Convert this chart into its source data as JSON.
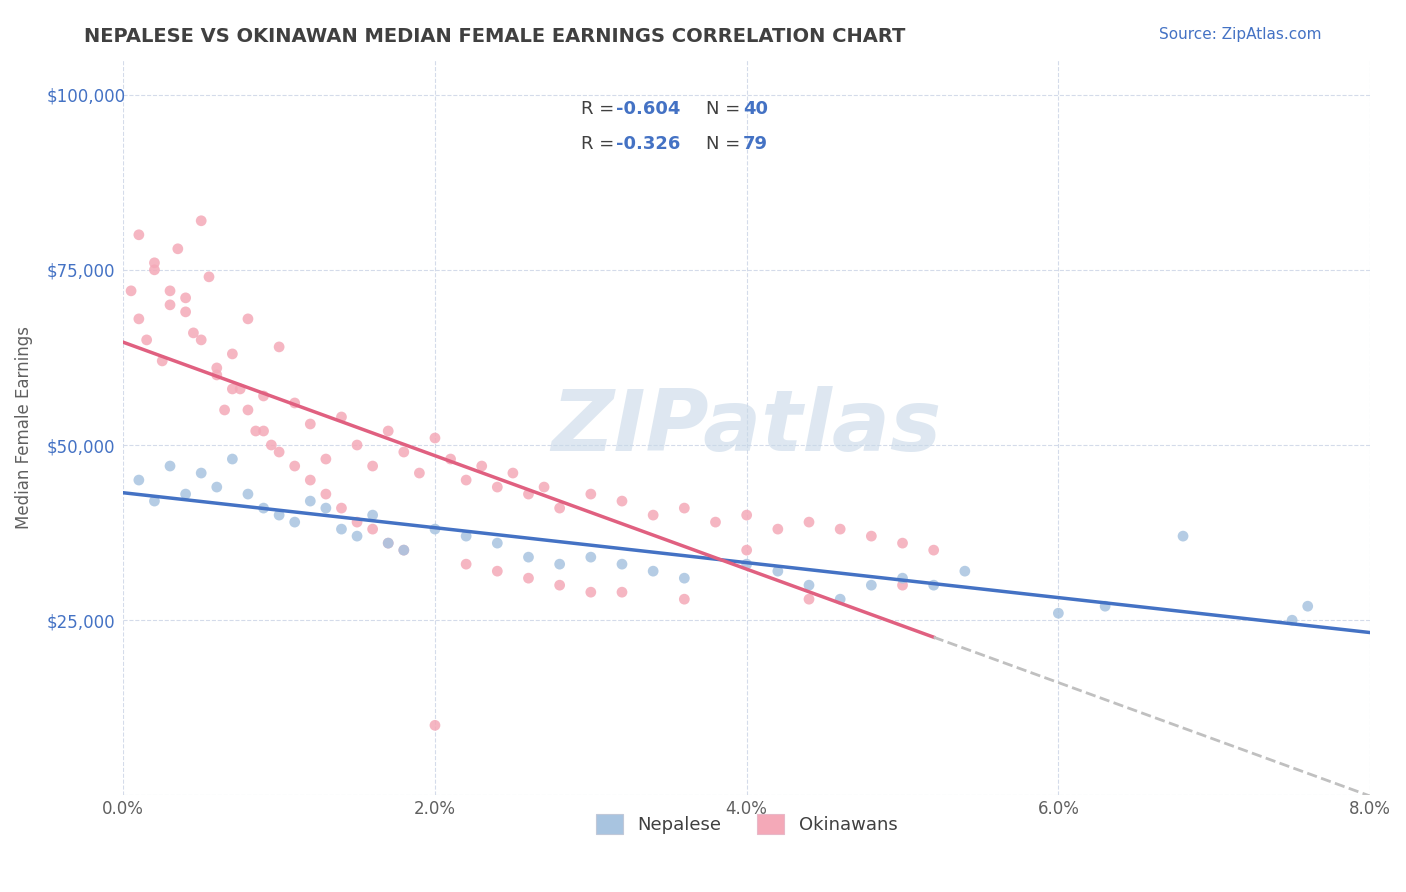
{
  "title": "NEPALESE VS OKINAWAN MEDIAN FEMALE EARNINGS CORRELATION CHART",
  "source_text": "Source: ZipAtlas.com",
  "xlabel": "",
  "ylabel": "Median Female Earnings",
  "xlim": [
    0.0,
    0.08
  ],
  "ylim": [
    0,
    105000
  ],
  "yticks": [
    0,
    25000,
    50000,
    75000,
    100000
  ],
  "ytick_labels": [
    "",
    "$25,000",
    "$50,000",
    "$75,000",
    "$100,000"
  ],
  "xtick_labels": [
    "0.0%",
    "2.0%",
    "4.0%",
    "6.0%",
    "8.0%"
  ],
  "xticks": [
    0.0,
    0.02,
    0.04,
    0.06,
    0.08
  ],
  "nepalese_R": -0.604,
  "nepalese_N": 40,
  "okinawan_R": -0.326,
  "okinawan_N": 79,
  "nepalese_color": "#a8c4e0",
  "okinawan_color": "#f4a9b8",
  "nepalese_line_color": "#4472c4",
  "okinawan_line_color": "#e06080",
  "trend_ext_color": "#c0c0c0",
  "watermark_text": "ZIPatlas",
  "watermark_color": "#c8d8e8",
  "background_color": "#ffffff",
  "grid_color": "#d0d8e8",
  "title_color": "#404040",
  "source_color": "#4472c4",
  "legend_R_color": "#4472c4",
  "legend_N_color": "#4472c4",
  "nepalese_x": [
    0.001,
    0.002,
    0.003,
    0.004,
    0.005,
    0.006,
    0.007,
    0.008,
    0.009,
    0.01,
    0.011,
    0.012,
    0.013,
    0.014,
    0.015,
    0.016,
    0.017,
    0.018,
    0.02,
    0.022,
    0.024,
    0.026,
    0.028,
    0.03,
    0.032,
    0.034,
    0.036,
    0.04,
    0.042,
    0.044,
    0.046,
    0.048,
    0.05,
    0.052,
    0.054,
    0.06,
    0.063,
    0.068,
    0.075,
    0.076
  ],
  "nepalese_y": [
    45000,
    42000,
    47000,
    43000,
    46000,
    44000,
    48000,
    43000,
    41000,
    40000,
    39000,
    42000,
    41000,
    38000,
    37000,
    40000,
    36000,
    35000,
    38000,
    37000,
    36000,
    34000,
    33000,
    34000,
    33000,
    32000,
    31000,
    33000,
    32000,
    30000,
    28000,
    30000,
    31000,
    30000,
    32000,
    26000,
    27000,
    37000,
    25000,
    27000
  ],
  "okinawan_x": [
    0.0005,
    0.001,
    0.0015,
    0.002,
    0.0025,
    0.003,
    0.0035,
    0.004,
    0.0045,
    0.005,
    0.0055,
    0.006,
    0.0065,
    0.007,
    0.0075,
    0.008,
    0.0085,
    0.009,
    0.0095,
    0.01,
    0.011,
    0.012,
    0.013,
    0.014,
    0.015,
    0.016,
    0.017,
    0.018,
    0.019,
    0.02,
    0.021,
    0.022,
    0.023,
    0.024,
    0.025,
    0.026,
    0.027,
    0.028,
    0.03,
    0.032,
    0.034,
    0.036,
    0.038,
    0.04,
    0.042,
    0.044,
    0.046,
    0.048,
    0.05,
    0.052,
    0.001,
    0.002,
    0.003,
    0.004,
    0.005,
    0.006,
    0.007,
    0.008,
    0.009,
    0.01,
    0.011,
    0.012,
    0.013,
    0.014,
    0.015,
    0.016,
    0.017,
    0.018,
    0.02,
    0.022,
    0.024,
    0.026,
    0.028,
    0.03,
    0.032,
    0.036,
    0.04,
    0.044,
    0.05
  ],
  "okinawan_y": [
    72000,
    68000,
    65000,
    75000,
    62000,
    70000,
    78000,
    71000,
    66000,
    82000,
    74000,
    60000,
    55000,
    63000,
    58000,
    68000,
    52000,
    57000,
    50000,
    64000,
    56000,
    53000,
    48000,
    54000,
    50000,
    47000,
    52000,
    49000,
    46000,
    51000,
    48000,
    45000,
    47000,
    44000,
    46000,
    43000,
    44000,
    41000,
    43000,
    42000,
    40000,
    41000,
    39000,
    40000,
    38000,
    39000,
    38000,
    37000,
    36000,
    35000,
    80000,
    76000,
    72000,
    69000,
    65000,
    61000,
    58000,
    55000,
    52000,
    49000,
    47000,
    45000,
    43000,
    41000,
    39000,
    38000,
    36000,
    35000,
    10000,
    33000,
    32000,
    31000,
    30000,
    29000,
    29000,
    28000,
    35000,
    28000,
    30000
  ]
}
